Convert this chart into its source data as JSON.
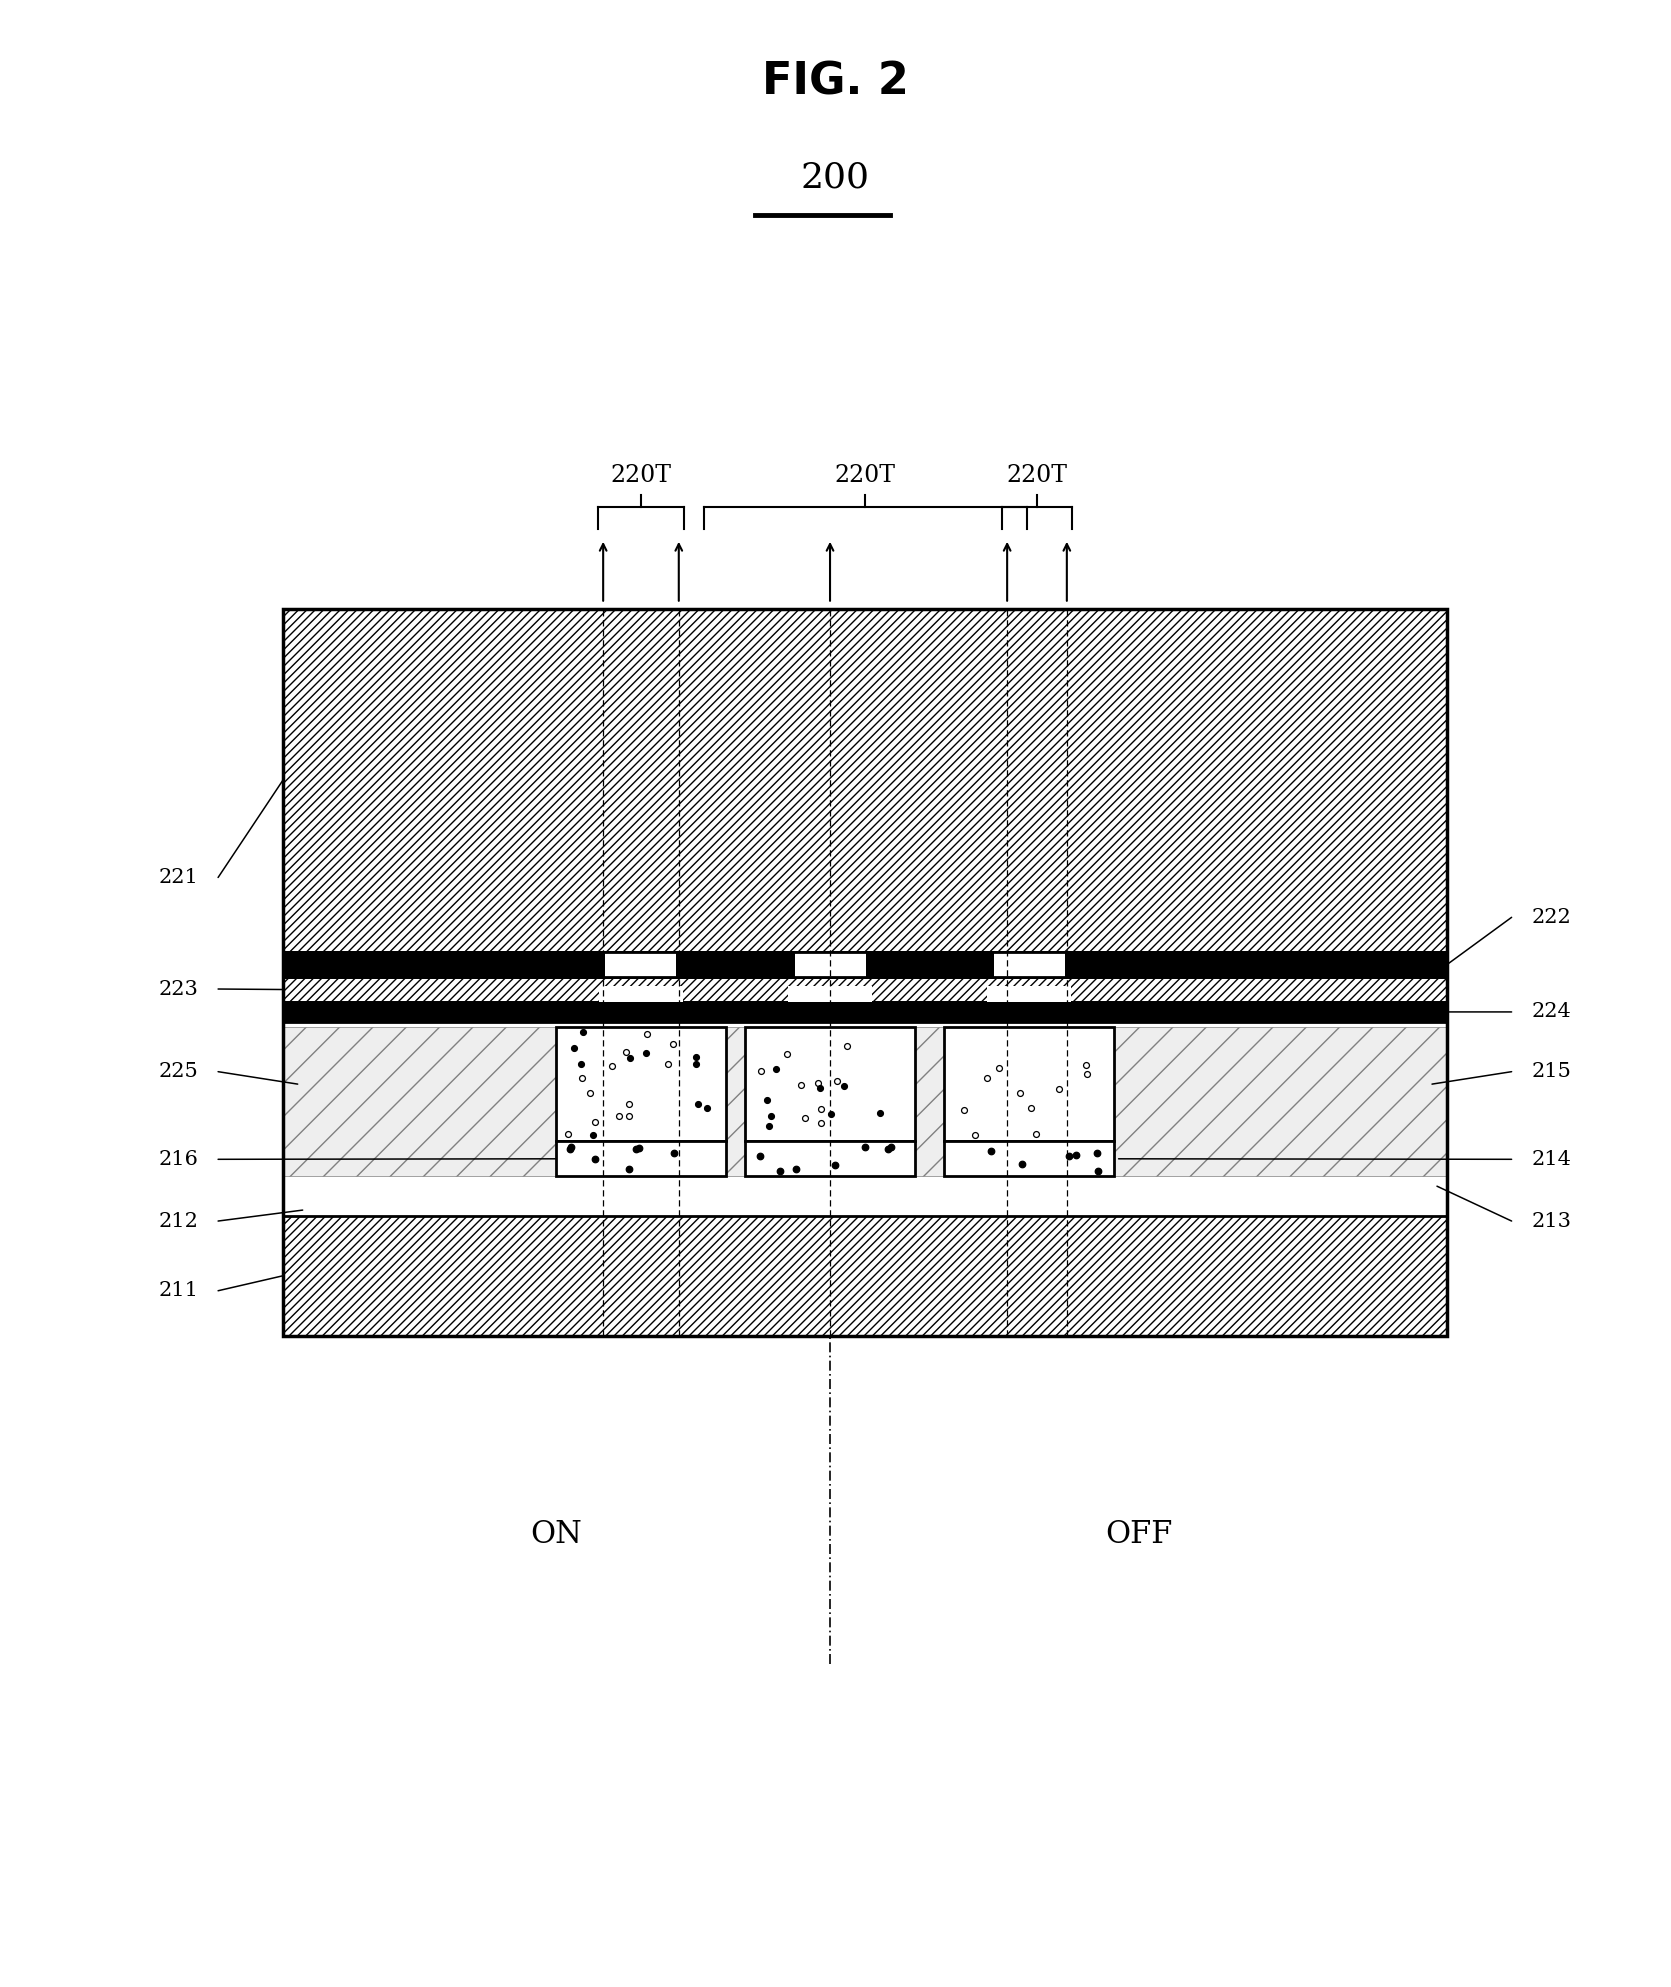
{
  "title": "FIG. 2",
  "label_200": "200",
  "label_220T": "220T",
  "on_label": "ON",
  "off_label": "OFF",
  "bg_color": "#ffffff"
}
